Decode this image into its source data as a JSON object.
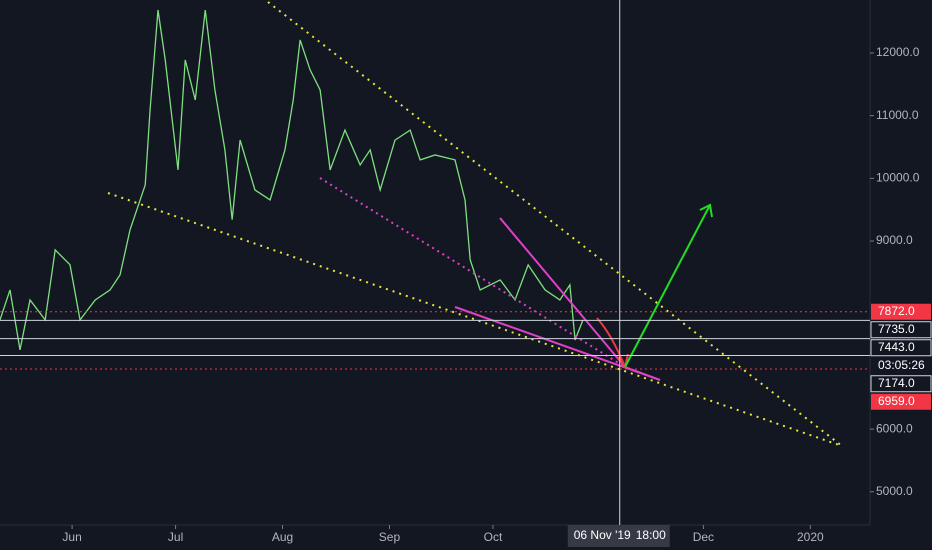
{
  "chart_data": {
    "type": "line",
    "series": [
      {
        "color": "#7ee07e",
        "x": [
          10.1,
          13.0,
          15.9,
          18.8,
          23.2,
          26.1,
          30.4,
          33.3,
          37.7,
          42.0,
          44.9,
          47.8,
          52.2,
          53.6,
          55.9,
          58.0,
          61.7,
          63.8,
          66.7,
          69.6,
          72.4,
          75.3,
          77.4,
          79.7,
          84.0,
          88.4,
          92.7,
          95.1,
          97.1,
          100.0,
          102.9,
          105.8,
          110.1,
          114.5,
          117.4,
          120.3,
          124.6,
          129.0,
          131.9,
          136.2,
          142.0,
          144.9,
          146.4,
          149.3,
          155.1,
          159.4,
          163.2,
          168.1,
          172.4,
          175.3,
          176.8,
          179.1
        ],
        "values": [
          7742,
          8220,
          7263,
          8060,
          7742,
          8858,
          8620,
          7742,
          8060,
          8220,
          8460,
          9180,
          9895,
          11090,
          12685,
          11890,
          10135,
          11890,
          11250,
          12685,
          11410,
          10453,
          9340,
          10610,
          9815,
          9655,
          10453,
          11250,
          12207,
          11730,
          11410,
          10135,
          10770,
          10214,
          10453,
          9815,
          10610,
          10770,
          10294,
          10373,
          10294,
          9655,
          8700,
          8220,
          8380,
          8060,
          8620,
          8220,
          8060,
          8300,
          7422,
          7742
        ]
      }
    ],
    "xlim": [
      10.1,
      262.3
    ],
    "xticks": [
      {
        "value": 31,
        "label": "Jun"
      },
      {
        "value": 61,
        "label": "Jul"
      },
      {
        "value": 92,
        "label": "Aug"
      },
      {
        "value": 123,
        "label": "Sep"
      },
      {
        "value": 153,
        "label": "Oct"
      },
      {
        "value": 214,
        "label": "Dec"
      },
      {
        "value": 245,
        "label": "2020"
      }
    ],
    "ylim": [
      4470,
      12845
    ],
    "yticks": [
      {
        "value": 5000,
        "label": "5000.0"
      },
      {
        "value": 6000,
        "label": "6000.0"
      },
      {
        "value": 9000,
        "label": "9000.0"
      },
      {
        "value": 10000,
        "label": "10000.0"
      },
      {
        "value": 11000,
        "label": "11000.0"
      },
      {
        "value": 12000,
        "label": "12000.0"
      }
    ],
    "price_lines": [
      {
        "value": 7872,
        "label": "7872.0",
        "color": "#f23645"
      },
      {
        "value": 7735,
        "label": "7735.0",
        "color": "#d1d4dc"
      },
      {
        "value": 7443,
        "label": "7443.0",
        "color": "#d1d4dc",
        "countdown": "03:05:26"
      },
      {
        "value": 7174,
        "label": "7174.0",
        "color": "#d1d4dc"
      },
      {
        "value": 6959,
        "label": "6959.0",
        "color": "#f23645"
      }
    ],
    "crosshair": {
      "value": 189.75,
      "label": "06 Nov '19",
      "time": "18:00"
    }
  }
}
